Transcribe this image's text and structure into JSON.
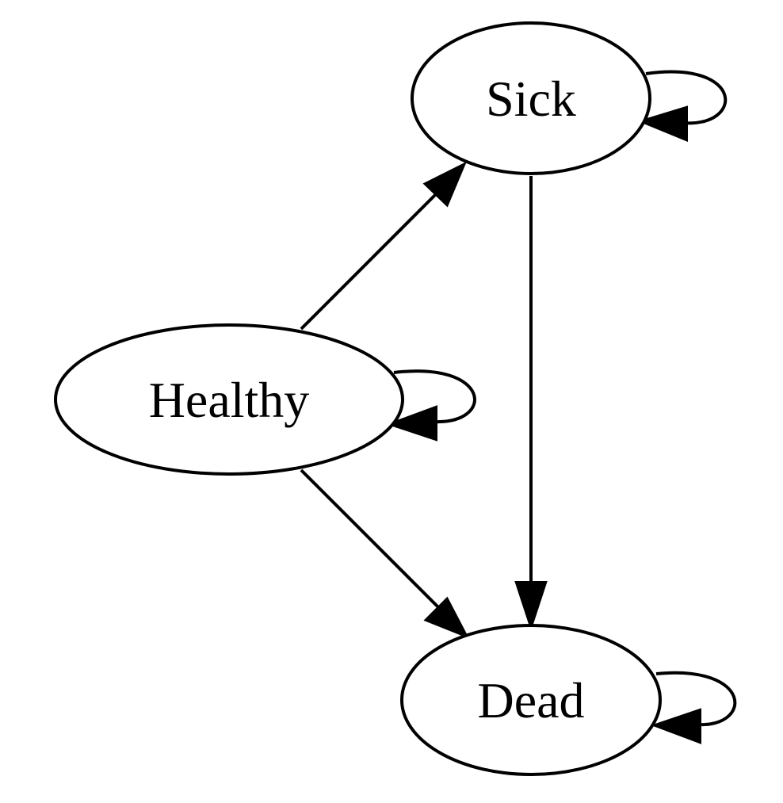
{
  "diagram": {
    "type": "state-transition-graph",
    "nodes": {
      "healthy": "Healthy",
      "sick": "Sick",
      "dead": "Dead"
    },
    "edges": [
      {
        "from": "Healthy",
        "to": "Healthy"
      },
      {
        "from": "Healthy",
        "to": "Sick"
      },
      {
        "from": "Healthy",
        "to": "Dead"
      },
      {
        "from": "Sick",
        "to": "Sick"
      },
      {
        "from": "Sick",
        "to": "Dead"
      },
      {
        "from": "Dead",
        "to": "Dead"
      }
    ],
    "colors": {
      "stroke": "#000000",
      "fill": "#ffffff"
    }
  }
}
